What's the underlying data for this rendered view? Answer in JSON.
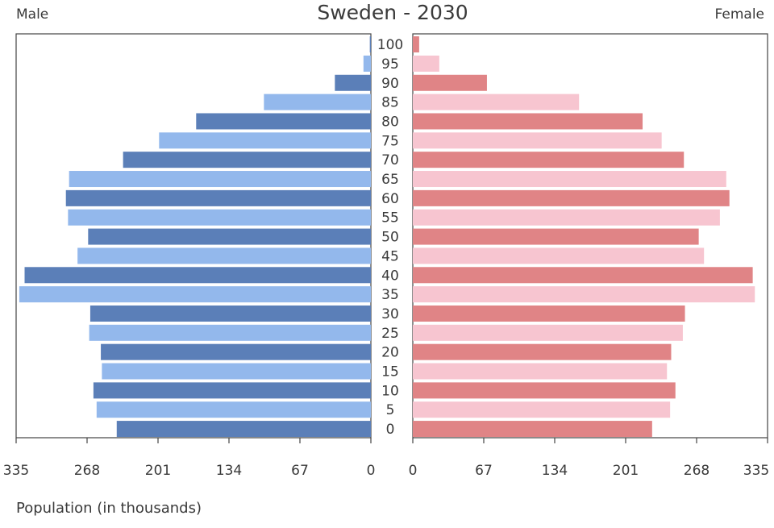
{
  "chart_data": {
    "type": "bar",
    "title": "Sweden - 2030",
    "left_label": "Male",
    "right_label": "Female",
    "xlabel": "Population (in thousands)",
    "xlim": [
      0,
      335
    ],
    "x_ticks_left": [
      "335",
      "268",
      "201",
      "134",
      "67",
      "0"
    ],
    "x_ticks_right": [
      "0",
      "67",
      "134",
      "201",
      "268",
      "335"
    ],
    "tick_values": [
      335,
      268,
      201,
      134,
      67,
      0
    ],
    "categories": [
      "0",
      "5",
      "10",
      "15",
      "20",
      "25",
      "30",
      "35",
      "40",
      "45",
      "50",
      "55",
      "60",
      "65",
      "70",
      "75",
      "80",
      "85",
      "90",
      "95",
      "100"
    ],
    "series": [
      {
        "name": "Male",
        "values": [
          240,
          259,
          262,
          254,
          255,
          266,
          265,
          332,
          327,
          277,
          267,
          286,
          288,
          285,
          234,
          200,
          165,
          101,
          34,
          7,
          1
        ],
        "colors": [
          "#5b7fb8",
          "#93b8ec"
        ]
      },
      {
        "name": "Female",
        "values": [
          226,
          243,
          248,
          240,
          244,
          255,
          257,
          323,
          321,
          275,
          270,
          290,
          299,
          296,
          256,
          235,
          217,
          157,
          70,
          25,
          6
        ],
        "colors": [
          "#e08486",
          "#f7c5d0"
        ]
      }
    ],
    "grid": false,
    "legend": "none"
  }
}
